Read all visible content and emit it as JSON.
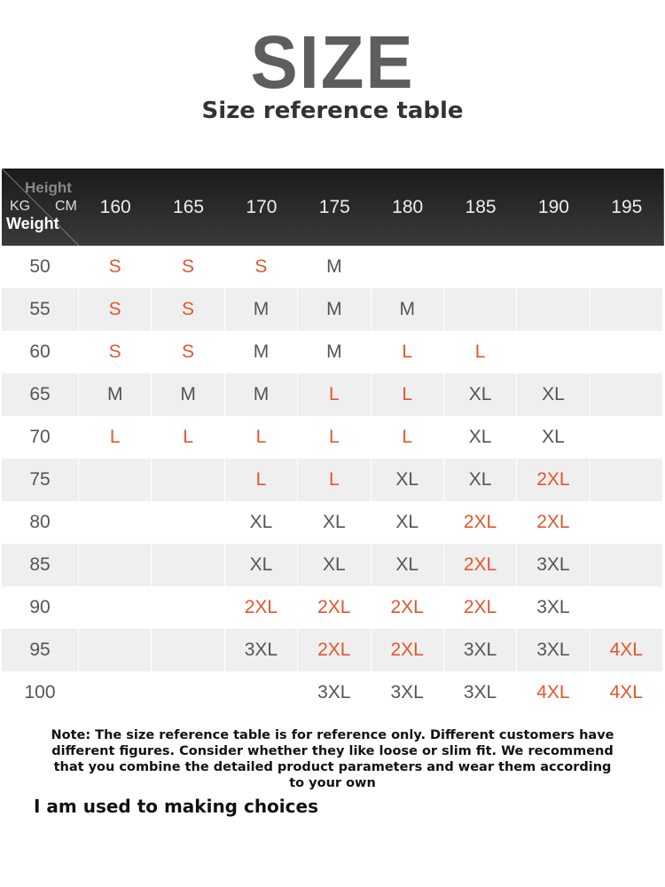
{
  "header": {
    "title": "SIZE",
    "subtitle": "Size reference table"
  },
  "table": {
    "corner": {
      "top": "Height",
      "left": "KG",
      "right": "CM",
      "bottom": "Weight"
    },
    "heights": [
      "160",
      "165",
      "170",
      "175",
      "180",
      "185",
      "190",
      "195"
    ],
    "rows": [
      {
        "weight": "50",
        "cells": [
          {
            "text": "S",
            "color": "#e2562e"
          },
          {
            "text": "S",
            "color": "#e2562e"
          },
          {
            "text": "S",
            "color": "#e2562e"
          },
          {
            "text": "M",
            "color": "#555555"
          },
          null,
          null,
          null,
          null
        ]
      },
      {
        "weight": "55",
        "cells": [
          {
            "text": "S",
            "color": "#e2562e"
          },
          {
            "text": "S",
            "color": "#e2562e"
          },
          {
            "text": "M",
            "color": "#555555"
          },
          {
            "text": "M",
            "color": "#555555"
          },
          {
            "text": "M",
            "color": "#555555"
          },
          null,
          null,
          null
        ]
      },
      {
        "weight": "60",
        "cells": [
          {
            "text": "S",
            "color": "#e2562e"
          },
          {
            "text": "S",
            "color": "#e2562e"
          },
          {
            "text": "M",
            "color": "#555555"
          },
          {
            "text": "M",
            "color": "#555555"
          },
          {
            "text": "L",
            "color": "#e2562e"
          },
          {
            "text": "L",
            "color": "#e2562e"
          },
          null,
          null
        ]
      },
      {
        "weight": "65",
        "cells": [
          {
            "text": "M",
            "color": "#555555"
          },
          {
            "text": "M",
            "color": "#555555"
          },
          {
            "text": "M",
            "color": "#555555"
          },
          {
            "text": "L",
            "color": "#e2562e"
          },
          {
            "text": "L",
            "color": "#e2562e"
          },
          {
            "text": "XL",
            "color": "#555555"
          },
          {
            "text": "XL",
            "color": "#555555"
          },
          null
        ]
      },
      {
        "weight": "70",
        "cells": [
          {
            "text": "L",
            "color": "#e2562e"
          },
          {
            "text": "L",
            "color": "#e2562e"
          },
          {
            "text": "L",
            "color": "#e2562e"
          },
          {
            "text": "L",
            "color": "#e2562e"
          },
          {
            "text": "L",
            "color": "#e2562e"
          },
          {
            "text": "XL",
            "color": "#555555"
          },
          {
            "text": "XL",
            "color": "#555555"
          },
          null
        ]
      },
      {
        "weight": "75",
        "cells": [
          null,
          null,
          {
            "text": "L",
            "color": "#e2562e"
          },
          {
            "text": "L",
            "color": "#e2562e"
          },
          {
            "text": "XL",
            "color": "#555555"
          },
          {
            "text": "XL",
            "color": "#555555"
          },
          {
            "text": "2XL",
            "color": "#e2562e"
          },
          null
        ]
      },
      {
        "weight": "80",
        "cells": [
          null,
          null,
          {
            "text": "XL",
            "color": "#555555"
          },
          {
            "text": "XL",
            "color": "#555555"
          },
          {
            "text": "XL",
            "color": "#555555"
          },
          {
            "text": "2XL",
            "color": "#e2562e"
          },
          {
            "text": "2XL",
            "color": "#e2562e"
          },
          null
        ]
      },
      {
        "weight": "85",
        "cells": [
          null,
          null,
          {
            "text": "XL",
            "color": "#555555"
          },
          {
            "text": "XL",
            "color": "#555555"
          },
          {
            "text": "XL",
            "color": "#555555"
          },
          {
            "text": "2XL",
            "color": "#e2562e"
          },
          {
            "text": "3XL",
            "color": "#555555"
          },
          null
        ]
      },
      {
        "weight": "90",
        "cells": [
          null,
          null,
          {
            "text": "2XL",
            "color": "#e2562e"
          },
          {
            "text": "2XL",
            "color": "#e2562e"
          },
          {
            "text": "2XL",
            "color": "#e2562e"
          },
          {
            "text": "2XL",
            "color": "#e2562e"
          },
          {
            "text": "3XL",
            "color": "#555555"
          },
          null
        ]
      },
      {
        "weight": "95",
        "cells": [
          null,
          null,
          {
            "text": "3XL",
            "color": "#555555"
          },
          {
            "text": "2XL",
            "color": "#e2562e"
          },
          {
            "text": "2XL",
            "color": "#e2562e"
          },
          {
            "text": "3XL",
            "color": "#555555"
          },
          {
            "text": "3XL",
            "color": "#555555"
          },
          {
            "text": "4XL",
            "color": "#e2562e"
          }
        ]
      },
      {
        "weight": "100",
        "cells": [
          null,
          null,
          null,
          {
            "text": "3XL",
            "color": "#555555"
          },
          {
            "text": "3XL",
            "color": "#555555"
          },
          {
            "text": "3XL",
            "color": "#555555"
          },
          {
            "text": "4XL",
            "color": "#e2562e"
          },
          {
            "text": "4XL",
            "color": "#e2562e"
          }
        ]
      }
    ]
  },
  "note": "Note: The size reference table is for reference only. Different customers have different figures. Consider whether they like loose or slim fit. We recommend that you combine the detailed product parameters and wear them according to your own",
  "footer": "I am used to making choices"
}
